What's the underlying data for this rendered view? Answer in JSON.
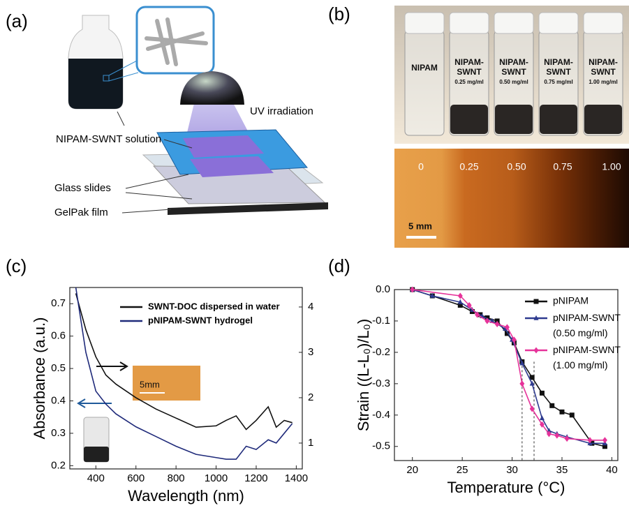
{
  "panels": {
    "a": {
      "label": "(a)",
      "solution": "NIPAM-SWNT solution",
      "uv": "UV irradiation",
      "glass": "Glass slides",
      "gelpak": "GelPak film"
    },
    "b": {
      "label": "(b)",
      "vials": [
        [
          "NIPAM"
        ],
        [
          "NIPAM-",
          "SWNT",
          "0.25 mg/ml"
        ],
        [
          "NIPAM-",
          "SWNT",
          "0.50 mg/ml"
        ],
        [
          "NIPAM-",
          "SWNT",
          "0.75 mg/ml"
        ],
        [
          "NIPAM-",
          "SWNT",
          "1.00 mg/ml"
        ]
      ],
      "strips": [
        "0",
        "0.25",
        "0.50",
        "0.75",
        "1.00"
      ],
      "scale": "5 mm"
    },
    "c": {
      "label": "(c)",
      "inset_scale": "5mm"
    },
    "d": {
      "label": "(d)"
    }
  },
  "chart_data": [
    {
      "type": "line",
      "xlabel": "Wavelength (nm)",
      "ylabel": "Absorbance (a.u.)",
      "x": [
        300,
        350,
        400,
        450,
        500,
        600,
        700,
        800,
        900,
        1000,
        1050,
        1100,
        1150,
        1200,
        1260,
        1300,
        1340,
        1380
      ],
      "series": [
        {
          "name": "SWNT-DOC dispersed in water",
          "color": "#111111",
          "axis": "y2",
          "values": [
            4.3,
            3.5,
            2.9,
            2.5,
            2.3,
            2.0,
            1.75,
            1.55,
            1.35,
            1.38,
            1.5,
            1.6,
            1.3,
            1.5,
            1.8,
            1.35,
            1.5,
            1.45
          ]
        },
        {
          "name": "pNIPAM-SWNT hydrogel",
          "color": "#1f2a7a",
          "values": [
            0.75,
            0.55,
            0.43,
            0.39,
            0.36,
            0.32,
            0.29,
            0.26,
            0.235,
            0.225,
            0.22,
            0.22,
            0.26,
            0.25,
            0.28,
            0.27,
            0.3,
            0.33
          ]
        }
      ],
      "xlim": [
        270,
        1430
      ],
      "xticks": [
        400,
        600,
        800,
        1000,
        1200,
        1400
      ],
      "ylim": [
        0.19,
        0.75
      ],
      "yticks": [
        0.2,
        0.3,
        0.4,
        0.5,
        0.6,
        0.7
      ],
      "y2lim": [
        0.43,
        4.43
      ],
      "y2ticks": [
        1,
        2,
        3,
        4
      ],
      "legend": "upper right"
    },
    {
      "type": "line",
      "xlabel": "Temperature (°C)",
      "ylabel": "Strain ((L-L₀)/L₀)",
      "series": [
        {
          "name": "pNIPAM",
          "color": "#111111",
          "marker": "square",
          "x": [
            20,
            22,
            24.8,
            26,
            26.8,
            27.5,
            28.5,
            29.5,
            30.2,
            31,
            32,
            33,
            34,
            35,
            36,
            38,
            39.3
          ],
          "values": [
            0,
            -0.02,
            -0.05,
            -0.07,
            -0.08,
            -0.09,
            -0.1,
            -0.14,
            -0.17,
            -0.23,
            -0.28,
            -0.33,
            -0.37,
            -0.39,
            -0.4,
            -0.49,
            -0.5
          ]
        },
        {
          "name": "pNIPAM-SWNT (0.50 mg/ml)",
          "color": "#2e3a8f",
          "marker": "triangle",
          "x": [
            20,
            22,
            24.8,
            26,
            27,
            28,
            29.3,
            30,
            31,
            32,
            33,
            33.7,
            34.5,
            35.5,
            37.8,
            39.3
          ],
          "values": [
            0,
            -0.02,
            -0.04,
            -0.065,
            -0.085,
            -0.1,
            -0.125,
            -0.16,
            -0.235,
            -0.3,
            -0.41,
            -0.45,
            -0.46,
            -0.47,
            -0.49,
            -0.49
          ]
        },
        {
          "name": "pNIPAM-SWNT (1.00 mg/ml)",
          "color": "#e6339a",
          "marker": "diamond",
          "x": [
            20,
            24.8,
            25.7,
            26.5,
            27.5,
            28.5,
            29.5,
            30.2,
            31,
            32,
            33,
            33.7,
            34.5,
            35.5,
            37.8,
            39.3
          ],
          "values": [
            0,
            -0.02,
            -0.05,
            -0.08,
            -0.1,
            -0.11,
            -0.12,
            -0.16,
            -0.3,
            -0.38,
            -0.43,
            -0.46,
            -0.465,
            -0.475,
            -0.48,
            -0.48
          ]
        }
      ],
      "xlim": [
        18.2,
        40.6
      ],
      "xticks": [
        20,
        25,
        30,
        35,
        40
      ],
      "ylim": [
        -0.545,
        0.0
      ],
      "yticks": [
        {
          "value": 0,
          "label": "0.0"
        },
        -0.1,
        -0.2,
        -0.3,
        -0.4,
        -0.5
      ],
      "vlines": [
        31,
        32.2
      ],
      "legend": "upper right"
    }
  ]
}
